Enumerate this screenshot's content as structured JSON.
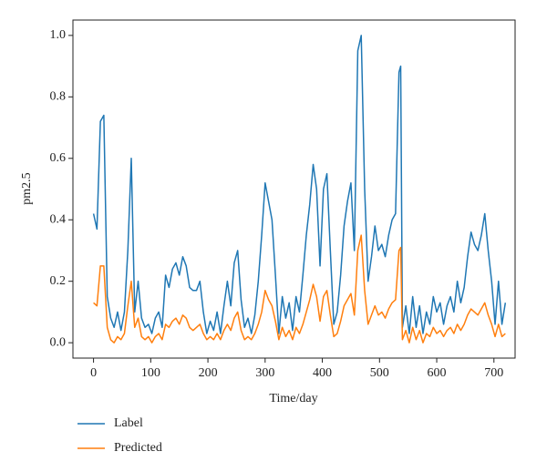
{
  "chart_data": {
    "type": "line",
    "xlabel": "Time/day",
    "ylabel": "pm2.5",
    "x": [
      0,
      6,
      12,
      18,
      24,
      30,
      36,
      42,
      48,
      54,
      60,
      66,
      72,
      78,
      84,
      90,
      96,
      102,
      108,
      114,
      120,
      126,
      132,
      138,
      144,
      150,
      156,
      162,
      168,
      174,
      180,
      186,
      192,
      198,
      204,
      210,
      216,
      222,
      228,
      234,
      240,
      246,
      252,
      258,
      264,
      270,
      276,
      282,
      288,
      294,
      300,
      306,
      312,
      318,
      324,
      330,
      336,
      342,
      348,
      354,
      360,
      366,
      372,
      378,
      384,
      390,
      396,
      402,
      408,
      414,
      420,
      426,
      432,
      438,
      444,
      450,
      456,
      462,
      468,
      474,
      480,
      486,
      492,
      498,
      504,
      510,
      516,
      522,
      528,
      534,
      537,
      540,
      546,
      552,
      558,
      564,
      570,
      576,
      582,
      588,
      594,
      600,
      606,
      612,
      618,
      624,
      630,
      636,
      642,
      648,
      654,
      660,
      666,
      672,
      678,
      684,
      690,
      696,
      702,
      708,
      714,
      720
    ],
    "series": [
      {
        "name": "Label",
        "color": "#1f77b4",
        "values": [
          0.42,
          0.37,
          0.72,
          0.74,
          0.15,
          0.08,
          0.05,
          0.1,
          0.04,
          0.1,
          0.3,
          0.6,
          0.1,
          0.2,
          0.08,
          0.05,
          0.06,
          0.03,
          0.08,
          0.1,
          0.05,
          0.22,
          0.18,
          0.24,
          0.26,
          0.22,
          0.28,
          0.25,
          0.18,
          0.17,
          0.17,
          0.2,
          0.1,
          0.03,
          0.07,
          0.04,
          0.1,
          0.03,
          0.12,
          0.2,
          0.12,
          0.26,
          0.3,
          0.14,
          0.05,
          0.08,
          0.03,
          0.09,
          0.2,
          0.35,
          0.52,
          0.46,
          0.4,
          0.22,
          0.03,
          0.15,
          0.08,
          0.13,
          0.04,
          0.15,
          0.1,
          0.22,
          0.35,
          0.45,
          0.58,
          0.5,
          0.25,
          0.5,
          0.55,
          0.3,
          0.06,
          0.1,
          0.22,
          0.38,
          0.46,
          0.52,
          0.3,
          0.95,
          1.0,
          0.5,
          0.2,
          0.28,
          0.38,
          0.3,
          0.32,
          0.28,
          0.35,
          0.4,
          0.42,
          0.88,
          0.9,
          0.05,
          0.12,
          0.03,
          0.15,
          0.05,
          0.12,
          0.03,
          0.1,
          0.06,
          0.15,
          0.1,
          0.13,
          0.06,
          0.12,
          0.15,
          0.1,
          0.2,
          0.13,
          0.18,
          0.28,
          0.36,
          0.32,
          0.3,
          0.35,
          0.42,
          0.3,
          0.2,
          0.06,
          0.2,
          0.06,
          0.13
        ]
      },
      {
        "name": "Predicted",
        "color": "#ff7f0e",
        "values": [
          0.13,
          0.12,
          0.25,
          0.25,
          0.05,
          0.01,
          0.0,
          0.02,
          0.01,
          0.03,
          0.12,
          0.2,
          0.05,
          0.08,
          0.02,
          0.01,
          0.02,
          0.0,
          0.02,
          0.03,
          0.01,
          0.06,
          0.05,
          0.07,
          0.08,
          0.06,
          0.09,
          0.08,
          0.05,
          0.04,
          0.05,
          0.06,
          0.03,
          0.01,
          0.02,
          0.01,
          0.03,
          0.01,
          0.04,
          0.06,
          0.04,
          0.08,
          0.1,
          0.04,
          0.01,
          0.02,
          0.01,
          0.03,
          0.06,
          0.1,
          0.17,
          0.14,
          0.12,
          0.07,
          0.01,
          0.05,
          0.02,
          0.04,
          0.01,
          0.05,
          0.03,
          0.06,
          0.1,
          0.14,
          0.19,
          0.15,
          0.07,
          0.15,
          0.17,
          0.09,
          0.02,
          0.03,
          0.07,
          0.12,
          0.14,
          0.16,
          0.09,
          0.3,
          0.35,
          0.17,
          0.06,
          0.09,
          0.12,
          0.09,
          0.1,
          0.08,
          0.11,
          0.13,
          0.14,
          0.3,
          0.31,
          0.01,
          0.04,
          0.0,
          0.05,
          0.01,
          0.04,
          0.0,
          0.03,
          0.02,
          0.05,
          0.03,
          0.04,
          0.02,
          0.04,
          0.05,
          0.03,
          0.06,
          0.04,
          0.06,
          0.09,
          0.11,
          0.1,
          0.09,
          0.11,
          0.13,
          0.09,
          0.06,
          0.02,
          0.06,
          0.02,
          0.03
        ]
      }
    ],
    "xlim": [
      -36,
      737
    ],
    "xticks": [
      0,
      100,
      200,
      300,
      400,
      500,
      600,
      700
    ],
    "ylim": [
      -0.05,
      1.05
    ],
    "yticks": [
      {
        "value": 0,
        "label": "0.0"
      },
      0.2,
      0.4,
      0.6,
      0.8,
      {
        "value": 1,
        "label": "1.0"
      }
    ],
    "legend": "below-left"
  }
}
